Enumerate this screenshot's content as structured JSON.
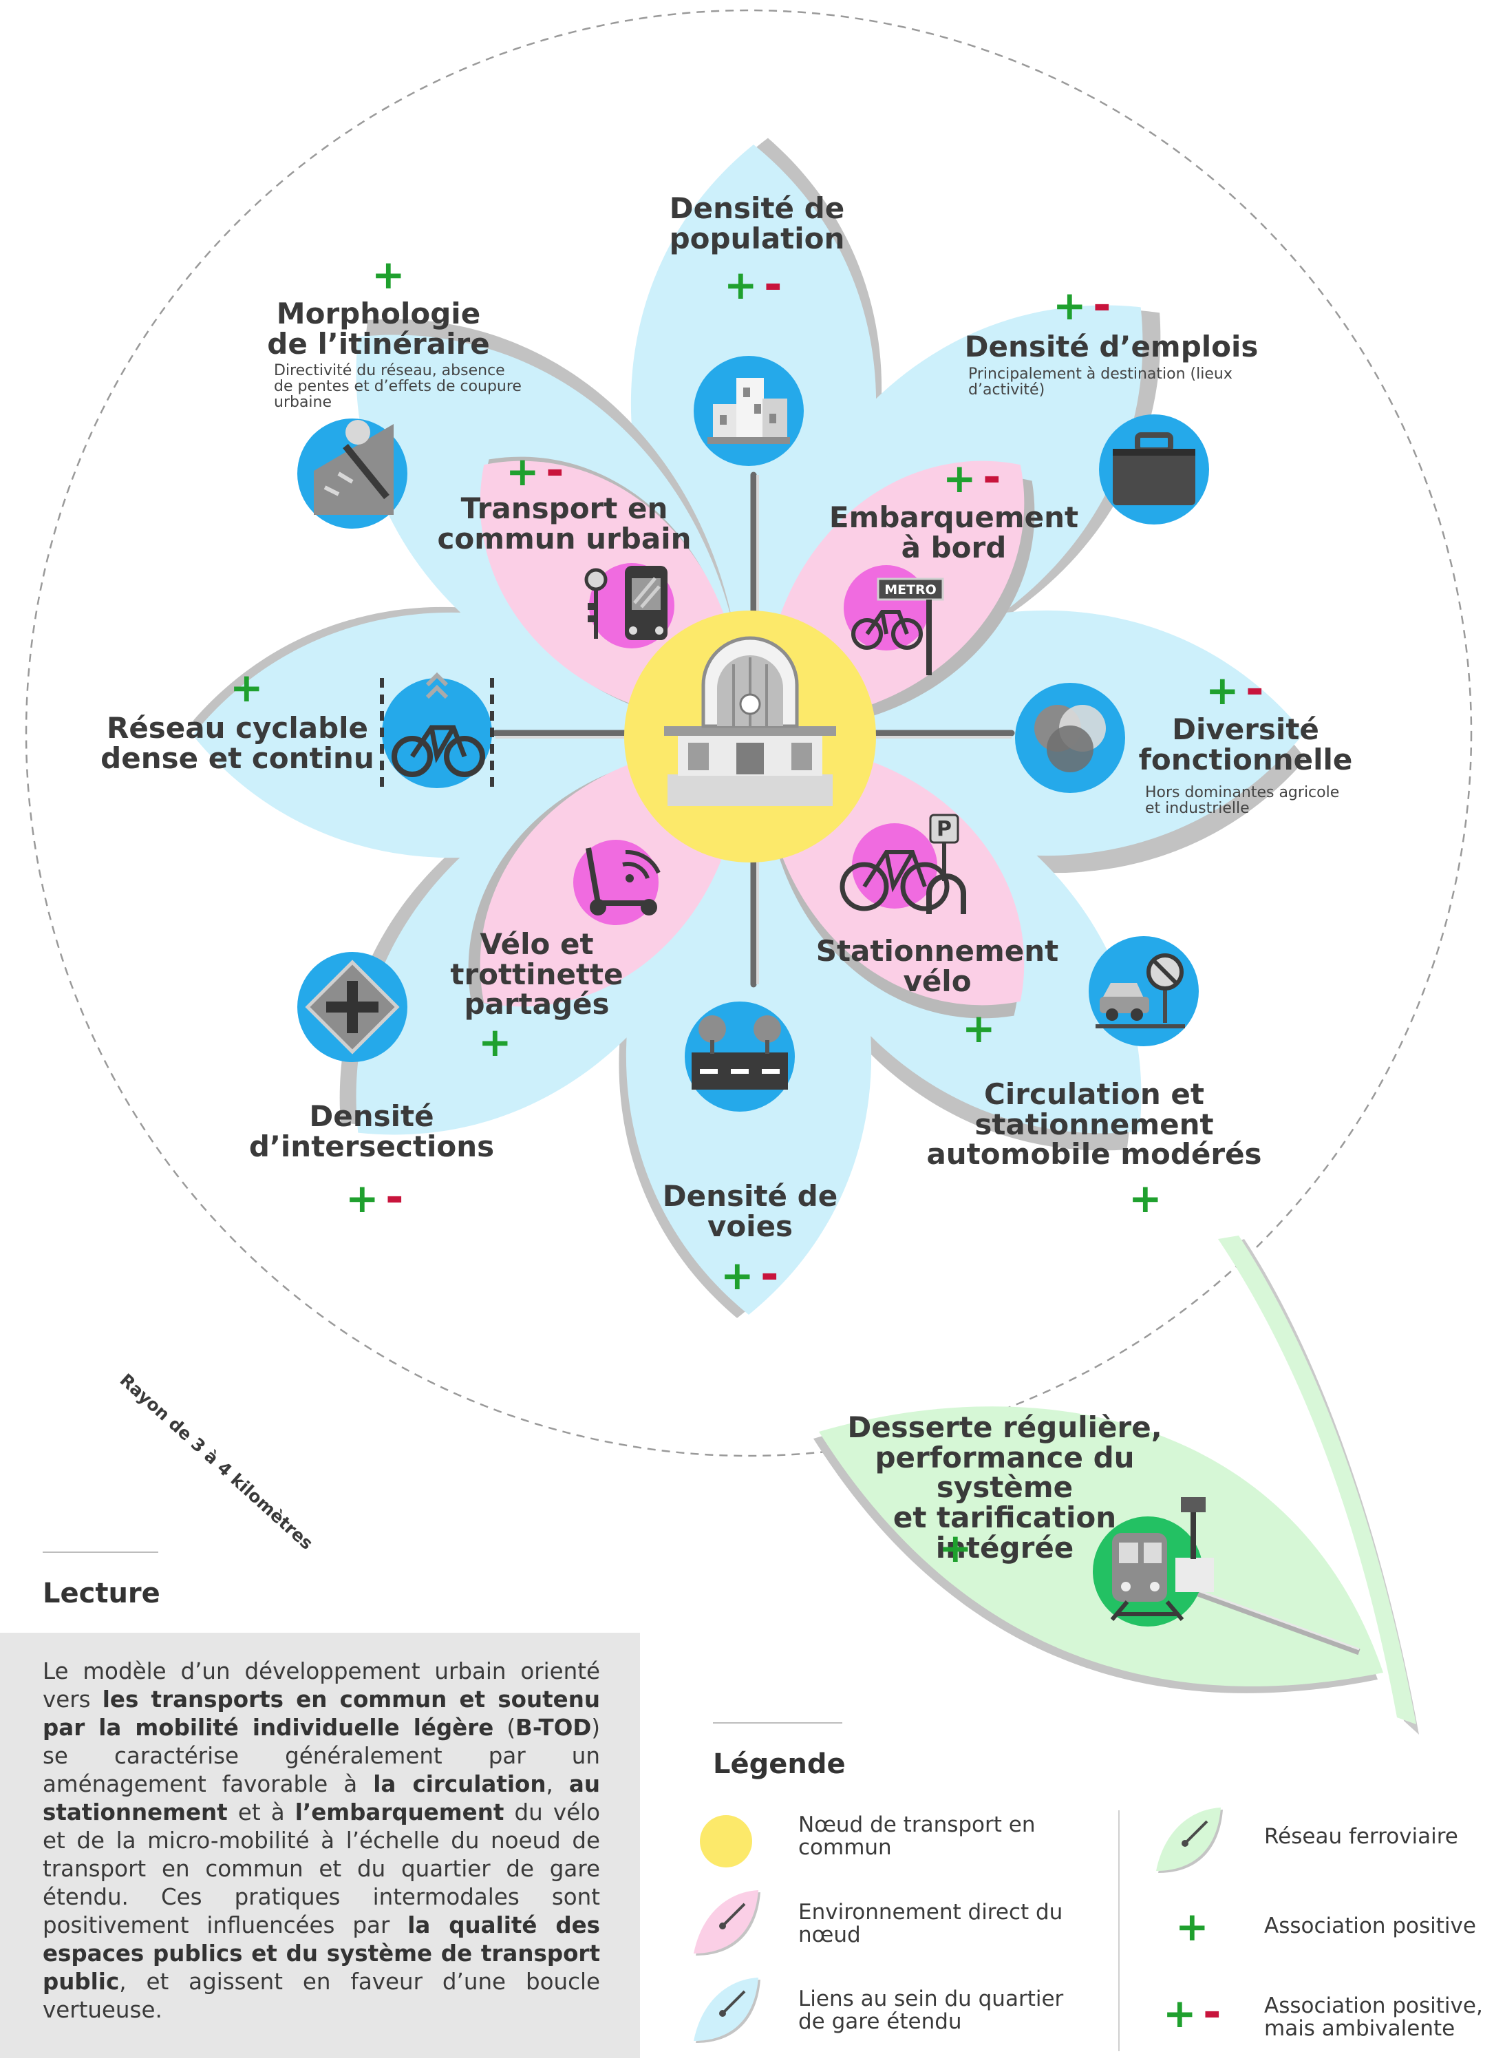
{
  "colors": {
    "node": "#fce96a",
    "direct_petal": "#fbcfe6",
    "direct_shadow": "#f4a8d0",
    "district_petal": "#cdf0fb",
    "district_shadow": "#9fdcf1",
    "rail_petal": "#d6f7d6",
    "icon_blue": "#25a9ea",
    "icon_magenta": "#f06be0",
    "icon_green": "#23c163",
    "positive": "#1fa02e",
    "negative": "#c8143c"
  },
  "radius_label": "Rayon de 3 à 4 kilomètres",
  "center": {
    "icon": "train-station-icon"
  },
  "district_petals": [
    {
      "id": "population",
      "title_lines": [
        "Densité de",
        "population"
      ],
      "association": "positive-ambivalent",
      "icon": "buildings-icon"
    },
    {
      "id": "emplois",
      "title": "Densité d’emplois",
      "subtitle_lines": [
        "Principalement à destination (lieux",
        "d’activité)"
      ],
      "association": "positive-ambivalent",
      "icon": "briefcase-icon"
    },
    {
      "id": "diversite",
      "title_lines": [
        "Diversité",
        "fonctionnelle"
      ],
      "subtitle_lines": [
        "Hors dominantes agricole",
        "et industrielle"
      ],
      "association": "positive-ambivalent",
      "icon": "venn-icon"
    },
    {
      "id": "automobile",
      "title_lines": [
        "Circulation et",
        "stationnement",
        "automobile modérés"
      ],
      "association": "positive",
      "icon": "car-no-parking-icon"
    },
    {
      "id": "voies",
      "title_lines": [
        "Densité de",
        "voies"
      ],
      "association": "positive-ambivalent",
      "icon": "road-icon"
    },
    {
      "id": "intersections",
      "title_lines": [
        "Densité",
        "d’intersections"
      ],
      "association": "positive-ambivalent",
      "icon": "intersection-sign-icon"
    },
    {
      "id": "cyclable",
      "title_lines": [
        "Réseau cyclable",
        "dense et continu"
      ],
      "association": "positive",
      "icon": "bike-lane-icon"
    },
    {
      "id": "morphologie",
      "title_lines": [
        "Morphologie",
        "de l’itinéraire"
      ],
      "subtitle_lines": [
        "Directivité du réseau, absence",
        "de pentes et d’effets de coupure",
        "urbaine"
      ],
      "association": "positive",
      "icon": "slope-icon"
    }
  ],
  "direct_petals": [
    {
      "id": "tc-urbain",
      "title_lines": [
        "Transport en",
        "commun urbain"
      ],
      "association": "positive-ambivalent",
      "icon": "bus-stop-icon"
    },
    {
      "id": "embarquement",
      "title_lines": [
        "Embarquement",
        "à bord"
      ],
      "association": "positive-ambivalent",
      "icon": "metro-bike-icon",
      "icon_text": "METRO"
    },
    {
      "id": "stationnement-velo",
      "title_lines": [
        "Stationnement",
        "vélo"
      ],
      "association": "positive",
      "icon": "bike-parking-icon",
      "icon_text": "P"
    },
    {
      "id": "partages",
      "title_lines": [
        "Vélo et",
        "trottinette",
        "partagés"
      ],
      "association": "positive",
      "icon": "scooter-wifi-icon"
    }
  ],
  "rail_leaf": {
    "title_lines": [
      "Desserte régulière,",
      "performance du système",
      "et tarification intégrée"
    ],
    "association": "positive",
    "icon": "train-icon"
  },
  "lecture": {
    "title": "Lecture",
    "runs": [
      {
        "t": "Le modèle d’un développement urbain orienté vers "
      },
      {
        "t": "les transports en commun et soutenu par la mobilité individuelle légère",
        "b": true
      },
      {
        "t": " ("
      },
      {
        "t": "B-TOD",
        "b": true
      },
      {
        "t": ") se caractérise généralement par un aménagement favorable à "
      },
      {
        "t": "la circulation",
        "b": true
      },
      {
        "t": ", "
      },
      {
        "t": "au stationnement",
        "b": true
      },
      {
        "t": " et à "
      },
      {
        "t": "l’embarquement",
        "b": true
      },
      {
        "t": " du vélo et de la micro-mobilité à l’échelle du noeud de transport en commun et du quartier de gare étendu. Ces pratiques intermodales sont positivement influencées par "
      },
      {
        "t": "la qualité des espaces publics et du système de transport public",
        "b": true
      },
      {
        "t": ", et agissent en faveur d’une boucle vertueuse."
      }
    ]
  },
  "legend": {
    "title": "Légende",
    "items": [
      {
        "symbol": "node",
        "label_lines": [
          "Nœud de transport en",
          "commun"
        ]
      },
      {
        "symbol": "direct",
        "label_lines": [
          "Environnement direct du",
          "nœud"
        ]
      },
      {
        "symbol": "district",
        "label_lines": [
          "Liens au sein du quartier",
          "de gare étendu"
        ]
      },
      {
        "symbol": "rail",
        "label_lines": [
          "Réseau ferroviaire"
        ]
      },
      {
        "symbol": "positive",
        "label_lines": [
          "Association positive"
        ]
      },
      {
        "symbol": "positive-ambivalent",
        "label_lines": [
          "Association positive,",
          "mais ambivalente"
        ]
      }
    ]
  },
  "signs": {
    "plus": "+",
    "minus": "-"
  }
}
